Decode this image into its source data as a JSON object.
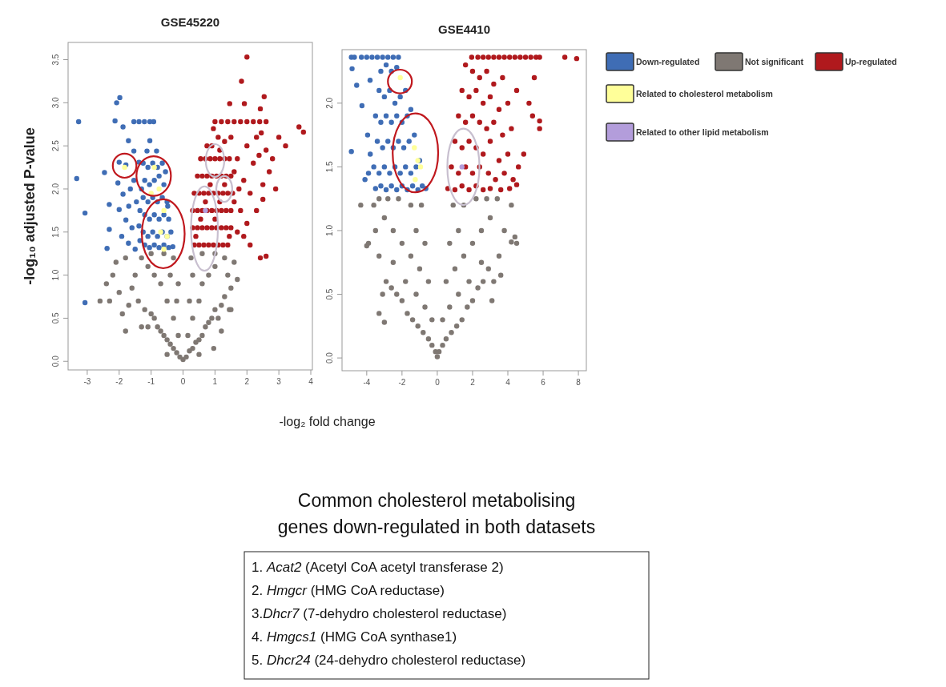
{
  "chart_data": [
    {
      "type": "scatter",
      "title": "GSE45220",
      "xlabel": "-log₂ fold change",
      "ylabel": "-log₁₀ adjusted P-value",
      "xlim": [
        -3.6,
        4.05
      ],
      "ylim": [
        -0.1,
        3.7
      ],
      "xticks": [
        -3,
        -2,
        -1,
        0,
        1,
        2,
        3,
        4
      ],
      "yticks": [
        {
          "value": 0,
          "label": "0.0"
        },
        {
          "value": 0.5,
          "label": "0.5"
        },
        {
          "value": 1,
          "label": "1.0"
        },
        {
          "value": 1.5,
          "label": "1.5"
        },
        {
          "value": 2,
          "label": "2.0"
        },
        {
          "value": 2.5,
          "label": "2.5"
        },
        {
          "value": 3,
          "label": "3.0"
        },
        {
          "value": 3.5,
          "label": "3.5"
        }
      ],
      "marker": "circle",
      "annotations": [
        "Common cholesterol metabolising genes down-regulated in both datasets",
        "1. Acat2 (Acetyl CoA acetyl transferase 2)",
        "2. Hmgcr (HMG CoA reductase)",
        "3.Dhcr7 (7-dehydro cholesterol reductase)",
        "4. Hmgcs1 (HMG CoA synthase1)",
        "5. Dhcr24 (24-dehydro cholesterol reductase)"
      ],
      "series": [
        {
          "color": "#7f7873",
          "x": [
            0,
            -0.1,
            0.1,
            -0.2,
            0.2,
            -0.3,
            0.3,
            -0.4,
            0.4,
            -0.5,
            0.5,
            -0.6,
            0.6,
            -0.7,
            0.7,
            -0.8,
            0.8,
            -0.9,
            0.9,
            -1.0,
            1.0,
            -1.2,
            1.2,
            -1.4,
            1.3,
            -0.3,
            0.3,
            -0.5,
            0.5,
            -0.7,
            0.6,
            -0.9,
            0.8,
            -1.1,
            1.0,
            -0.4,
            0.3,
            -0.3,
            0.25,
            -0.6,
            0.6,
            -1.0,
            1.0,
            -1.3,
            1.3,
            -1.5,
            1.4,
            -1.6,
            1.5,
            -1.7,
            1.45,
            -1.9,
            -2.0,
            -2.2,
            -2.4,
            -2.3,
            -2.6,
            -2.1,
            -1.8,
            1.6,
            1.7,
            1.2,
            -1.3,
            -0.15,
            0.15,
            -0.2,
            0.2,
            -0.15,
            1.1,
            -1.1,
            -1.8,
            0.5,
            -0.5,
            0.96,
            1.5
          ],
          "values": [
            0.02,
            0.05,
            0.05,
            0.1,
            0.12,
            0.15,
            0.15,
            0.2,
            0.22,
            0.25,
            0.25,
            0.3,
            0.3,
            0.35,
            0.4,
            0.4,
            0.45,
            0.5,
            0.5,
            0.55,
            0.6,
            0.6,
            0.65,
            0.7,
            0.75,
            0.5,
            0.5,
            0.7,
            0.7,
            0.9,
            0.9,
            1.0,
            1.0,
            1.1,
            1.1,
            1.0,
            1.0,
            1.2,
            1.2,
            1.25,
            1.25,
            1.25,
            1.25,
            1.2,
            1.2,
            1.0,
            1.0,
            0.85,
            0.85,
            0.65,
            0.6,
            0.55,
            0.8,
            1.0,
            0.9,
            0.7,
            0.7,
            1.15,
            1.2,
            1.15,
            0.95,
            0.35,
            0.4,
            0.3,
            0.3,
            0.7,
            0.7,
            0.9,
            0.5,
            0.4,
            0.35,
            0.08,
            0.08,
            0.15,
            0.6
          ]
        },
        {
          "color": "#3f6db5",
          "x": [
            -3.33,
            -3.27,
            -3.07,
            -3.07,
            -2.46,
            -2.31,
            -2.31,
            -2.38,
            -2.08,
            -1.98,
            -2.13,
            -1.88,
            -1.71,
            -2.0,
            -1.79,
            -2.04,
            -1.88,
            -2.0,
            -1.79,
            -1.92,
            -1.71,
            -1.54,
            -1.38,
            -1.54,
            -1.46,
            -1.38,
            -1.5,
            -1.54,
            -1.38,
            -1.21,
            -1.04,
            -0.92,
            -1.04,
            -0.83,
            -1.13,
            -1.25,
            -1.1,
            -0.95,
            -0.8,
            -0.65,
            -1.2,
            -1.05,
            -0.9,
            -0.75,
            -0.6,
            -1.25,
            -1.1,
            -0.95,
            -0.8,
            -0.65,
            -0.5,
            -1.2,
            -1.05,
            -0.9,
            -0.75,
            -0.6,
            -0.45,
            -1.25,
            -1.1,
            -0.95,
            -0.8,
            -0.65,
            -0.5,
            -0.38,
            -1.2,
            -1.05,
            -0.9,
            -0.75,
            -0.6,
            -0.45,
            -0.32,
            -1.35,
            -1.3,
            -1.35,
            -0.55,
            -0.48,
            -1.7,
            -1.65,
            -1.6
          ],
          "values": [
            2.12,
            2.78,
            1.72,
            0.68,
            2.19,
            1.82,
            1.53,
            1.31,
            3.0,
            3.06,
            2.79,
            2.72,
            2.56,
            2.31,
            2.28,
            2.07,
            1.94,
            1.76,
            1.64,
            1.45,
            1.37,
            2.44,
            2.31,
            2.1,
            1.85,
            1.57,
            1.3,
            2.78,
            2.78,
            2.78,
            2.78,
            2.78,
            2.56,
            2.44,
            2.44,
            2.3,
            2.25,
            2.3,
            2.25,
            2.3,
            2.1,
            2.05,
            2.1,
            2.15,
            2.05,
            1.9,
            1.85,
            1.9,
            1.85,
            1.9,
            1.85,
            1.7,
            1.65,
            1.7,
            1.65,
            1.7,
            1.65,
            1.5,
            1.45,
            1.5,
            1.45,
            1.5,
            1.45,
            1.5,
            1.35,
            1.32,
            1.35,
            1.32,
            1.35,
            1.32,
            1.33,
            1.4,
            2.0,
            1.75,
            2.2,
            1.8,
            1.8,
            2.0,
            1.55
          ]
        },
        {
          "color": "#b0191d",
          "x": [
            2.0,
            1.83,
            2.54,
            1.46,
            1.92,
            2.42,
            3.63,
            3.77,
            3.21,
            2.38,
            2.5,
            2.42,
            2.6,
            1.0,
            1.2,
            1.4,
            1.6,
            1.8,
            2.0,
            2.2,
            2.4,
            2.6,
            2.3,
            2.0,
            2.6,
            2.2,
            2.7,
            2.5,
            2.1,
            2.3,
            2.0,
            1.9,
            2.1,
            1.7,
            1.8,
            1.9,
            1.7,
            1.5,
            1.3,
            1.1,
            0.9,
            1.75,
            2.45,
            2.8,
            3.0,
            2.9,
            0.35,
            0.5,
            0.65,
            0.8,
            0.95,
            1.1,
            1.25,
            1.4,
            0.3,
            0.45,
            0.6,
            0.75,
            0.9,
            1.05,
            1.2,
            1.35,
            1.5,
            0.3,
            0.45,
            0.6,
            0.75,
            0.9,
            1.05,
            1.2,
            1.35,
            1.5,
            0.35,
            0.5,
            0.65,
            0.8,
            0.95,
            1.1,
            1.25,
            1.4,
            1.55,
            0.45,
            0.6,
            0.75,
            0.9,
            1.05,
            1.2,
            1.35,
            1.5,
            0.55,
            0.7,
            0.85,
            1.0,
            1.15,
            1.3,
            1.45,
            0.75,
            0.95,
            1.15,
            0.4,
            0.55,
            0.7,
            0.85,
            1.0,
            1.15,
            1.3,
            1.45,
            1.6,
            1.6
          ],
          "values": [
            3.53,
            3.25,
            3.07,
            2.99,
            2.99,
            2.93,
            2.72,
            2.66,
            2.5,
            2.39,
            1.88,
            1.2,
            1.22,
            2.78,
            2.78,
            2.78,
            2.78,
            2.78,
            2.78,
            2.78,
            2.78,
            2.78,
            2.6,
            2.5,
            2.45,
            2.3,
            2.2,
            2.05,
            1.95,
            1.75,
            1.6,
            1.45,
            1.35,
            1.5,
            1.75,
            2.1,
            2.35,
            2.6,
            2.55,
            2.6,
            2.5,
            2.0,
            2.65,
            2.35,
            2.6,
            2.0,
            1.35,
            1.35,
            1.35,
            1.35,
            1.35,
            1.35,
            1.35,
            1.35,
            1.55,
            1.55,
            1.55,
            1.55,
            1.55,
            1.55,
            1.55,
            1.55,
            1.55,
            1.75,
            1.75,
            1.75,
            1.75,
            1.75,
            1.75,
            1.75,
            1.75,
            1.75,
            1.95,
            1.95,
            1.95,
            1.95,
            1.95,
            1.95,
            1.95,
            1.95,
            1.95,
            2.15,
            2.15,
            2.15,
            2.15,
            2.15,
            2.15,
            2.15,
            2.15,
            2.35,
            2.35,
            2.35,
            2.35,
            2.35,
            2.35,
            2.35,
            2.5,
            2.7,
            2.45,
            1.45,
            1.65,
            1.85,
            2.05,
            1.65,
            1.85,
            2.05,
            1.45,
            1.85,
            2.2
          ]
        },
        {
          "color": "#ffff99",
          "x": [
            -1.83,
            -0.9,
            -0.75,
            -1.0,
            -0.6,
            -0.7,
            -0.5,
            -0.6
          ],
          "values": [
            2.25,
            2.25,
            2.0,
            1.95,
            1.75,
            1.5,
            1.45,
            1.3
          ]
        },
        {
          "color": "#b39ddb",
          "x": [
            0.7
          ],
          "values": [
            1.75
          ]
        }
      ]
    },
    {
      "type": "scatter",
      "title": "GSE4410",
      "xlim": [
        -5.4,
        8.45
      ],
      "ylim": [
        -0.1,
        2.42
      ],
      "xticks": [
        -4,
        -2,
        0,
        2,
        4,
        6,
        8
      ],
      "yticks": [
        {
          "value": 0,
          "label": "0.0"
        },
        {
          "value": 0.5,
          "label": "0.5"
        },
        {
          "value": 1,
          "label": "1.0"
        },
        {
          "value": 1.5,
          "label": "1.5"
        },
        {
          "value": 2,
          "label": "2.0"
        }
      ],
      "marker": "circle",
      "legend": "right",
      "series": [
        {
          "name": "Down-regulated",
          "color": "#3f6db5",
          "x": [
            -4.87,
            -4.7,
            -4.3,
            -4.0,
            -3.7,
            -3.4,
            -3.1,
            -2.8,
            -2.5,
            -2.2,
            -4.83,
            -4.57,
            -3.81,
            -4.27,
            -4.87,
            -3.2,
            -2.9,
            -2.6,
            -2.3,
            -3.3,
            -3.0,
            -2.7,
            -2.4,
            -2.1,
            -1.8,
            -3.5,
            -3.2,
            -2.9,
            -2.6,
            -2.3,
            -2.0,
            -1.7,
            -1.5,
            -3.4,
            -3.1,
            -2.8,
            -2.5,
            -2.2,
            -1.9,
            -1.6,
            -1.3,
            -3.6,
            -3.3,
            -3.0,
            -2.7,
            -2.4,
            -2.1,
            -1.8,
            -1.5,
            -1.2,
            -1.0,
            -3.5,
            -3.2,
            -2.9,
            -2.6,
            -2.3,
            -2.0,
            -1.7,
            -1.4,
            -1.1,
            -0.85,
            -0.65,
            -3.9,
            -3.8,
            -3.95,
            -4.1
          ],
          "values": [
            2.36,
            2.36,
            2.36,
            2.36,
            2.36,
            2.36,
            2.36,
            2.36,
            2.36,
            2.36,
            2.27,
            2.14,
            2.18,
            1.98,
            1.62,
            2.25,
            2.3,
            2.25,
            2.28,
            2.1,
            2.05,
            2.1,
            2.0,
            2.05,
            2.1,
            1.9,
            1.85,
            1.9,
            1.85,
            1.9,
            1.85,
            1.9,
            1.95,
            1.7,
            1.65,
            1.7,
            1.65,
            1.7,
            1.65,
            1.7,
            1.75,
            1.5,
            1.45,
            1.5,
            1.45,
            1.5,
            1.45,
            1.5,
            1.45,
            1.5,
            1.55,
            1.33,
            1.35,
            1.32,
            1.35,
            1.32,
            1.35,
            1.32,
            1.35,
            1.32,
            1.35,
            1.33,
            1.45,
            1.6,
            1.75,
            1.4
          ]
        },
        {
          "name": "Not significant",
          "color": "#7f7873",
          "x": [
            0,
            -0.1,
            0.1,
            -0.3,
            0.3,
            -0.5,
            0.5,
            -0.8,
            0.8,
            -1.1,
            1.1,
            -1.4,
            1.4,
            -1.7,
            1.7,
            -2.0,
            2.0,
            -2.3,
            2.3,
            -2.6,
            2.6,
            -2.9,
            2.9,
            -3.1,
            3.2,
            -3.3,
            3.5,
            -3.5,
            3.8,
            -3.6,
            4.2,
            -3.9,
            4.4,
            -3.3,
            -3.0,
            3.1,
            3.6,
            -0.3,
            0.3,
            -0.5,
            0.5,
            -0.7,
            0.7,
            -0.9,
            0.9,
            -1.0,
            1.0,
            -1.5,
            1.5,
            -2.0,
            2.0,
            -2.5,
            2.5,
            -3.0,
            3.0,
            -1.5,
            1.5,
            -2.2,
            2.2,
            -2.8,
            2.8,
            -3.3,
            3.4,
            -1.2,
            1.2,
            -1.8,
            1.8,
            -2.5,
            2.5,
            -0.7,
            0.7,
            -1.2,
            1.2,
            -4.0,
            -4.34,
            4.2,
            4.5
          ],
          "values": [
            0.01,
            0.05,
            0.05,
            0.1,
            0.1,
            0.15,
            0.15,
            0.2,
            0.2,
            0.25,
            0.25,
            0.3,
            0.3,
            0.35,
            0.4,
            0.45,
            0.45,
            0.5,
            0.55,
            0.55,
            0.6,
            0.6,
            0.7,
            0.5,
            0.6,
            0.8,
            0.8,
            1.0,
            1.0,
            1.2,
            1.2,
            0.9,
            0.95,
            0.35,
            0.28,
            0.45,
            0.65,
            0.3,
            0.3,
            0.6,
            0.6,
            0.9,
            0.9,
            1.2,
            1.2,
            0.7,
            0.7,
            0.8,
            0.8,
            0.9,
            0.9,
            1.0,
            1.0,
            1.1,
            1.1,
            1.2,
            1.2,
            1.25,
            1.25,
            1.25,
            1.25,
            1.25,
            1.25,
            1.0,
            1.0,
            0.6,
            0.6,
            0.75,
            0.75,
            0.4,
            0.4,
            0.5,
            0.5,
            0.88,
            1.2,
            0.91,
            0.9
          ]
        },
        {
          "name": "Up-regulated",
          "color": "#b0191d",
          "x": [
            1.95,
            2.3,
            2.6,
            2.9,
            3.2,
            3.5,
            3.8,
            4.1,
            4.4,
            4.7,
            5.0,
            5.3,
            5.6,
            5.8,
            7.23,
            7.9,
            5.8,
            5.8,
            5.4,
            4.5,
            5.5,
            5.2,
            4.9,
            4.6,
            1.6,
            2.0,
            2.4,
            2.8,
            3.2,
            3.7,
            1.4,
            1.8,
            2.2,
            2.6,
            3.0,
            3.5,
            4.0,
            4.5,
            1.2,
            1.6,
            2.0,
            2.4,
            2.8,
            3.2,
            3.7,
            4.2,
            1.0,
            1.4,
            1.8,
            2.2,
            2.6,
            3.0,
            3.5,
            4.0,
            0.8,
            1.2,
            1.6,
            2.0,
            2.4,
            2.9,
            3.3,
            3.8,
            4.3,
            0.6,
            1.0,
            1.4,
            1.8,
            2.2,
            2.6,
            3.0,
            3.6,
            4.1
          ],
          "values": [
            2.36,
            2.36,
            2.36,
            2.36,
            2.36,
            2.36,
            2.36,
            2.36,
            2.36,
            2.36,
            2.36,
            2.36,
            2.36,
            2.36,
            2.36,
            2.35,
            1.86,
            1.8,
            1.9,
            1.36,
            2.2,
            2.0,
            1.6,
            1.5,
            2.3,
            2.25,
            2.2,
            2.25,
            2.15,
            2.2,
            2.1,
            2.05,
            2.1,
            2.0,
            2.05,
            1.95,
            2.0,
            2.1,
            1.9,
            1.85,
            1.9,
            1.85,
            1.8,
            1.85,
            1.75,
            1.8,
            1.7,
            1.65,
            1.7,
            1.65,
            1.6,
            1.7,
            1.55,
            1.6,
            1.5,
            1.45,
            1.5,
            1.45,
            1.5,
            1.45,
            1.4,
            1.45,
            1.4,
            1.33,
            1.32,
            1.35,
            1.32,
            1.35,
            1.32,
            1.33,
            1.32,
            1.33
          ]
        },
        {
          "name": "Related to cholesterol metabolism",
          "color": "#ffff99",
          "x": [
            -2.1,
            -1.3,
            -1.1,
            -1.25,
            -0.95
          ],
          "values": [
            2.2,
            1.65,
            1.55,
            1.4,
            1.5
          ]
        },
        {
          "name": "Related to other lipid metabolism",
          "color": "#b39ddb",
          "x": [
            1.4
          ],
          "values": [
            1.5
          ]
        }
      ]
    }
  ]
}
